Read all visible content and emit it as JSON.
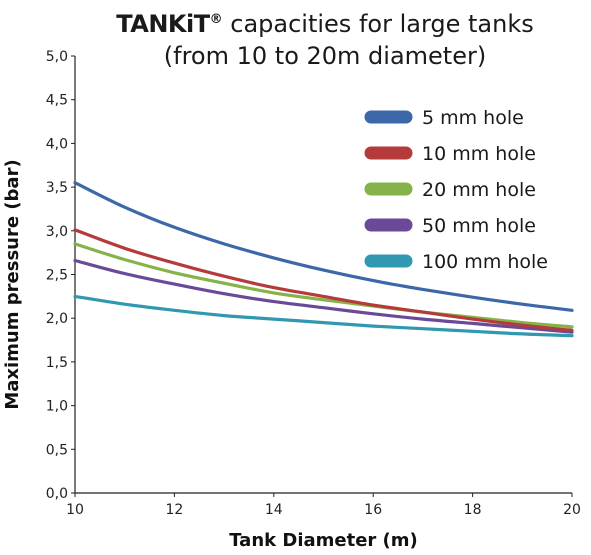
{
  "title": {
    "brand": "TANKiT",
    "reg": "®",
    "line1_rest": " capacities for large tanks",
    "line2": "(from 10 to 20m diameter)"
  },
  "chart_data": {
    "type": "line",
    "xlabel": "Tank Diameter (m)",
    "ylabel": "Maximum pressure (bar)",
    "xlim": [
      10,
      20
    ],
    "ylim": [
      0,
      5
    ],
    "x_ticks": [
      "10",
      "12",
      "14",
      "16",
      "18",
      "20"
    ],
    "y_ticks": [
      "0,0",
      "0,5",
      "1,0",
      "1,5",
      "2,0",
      "2,5",
      "3,0",
      "3,5",
      "4,0",
      "4,5",
      "5,0"
    ],
    "grid": false,
    "legend_position": "top-right",
    "x": [
      10,
      11,
      12,
      13,
      14,
      15,
      16,
      17,
      18,
      19,
      20
    ],
    "series": [
      {
        "name": "5 mm hole",
        "color": "#3c67a8",
        "values": [
          3.55,
          3.27,
          3.04,
          2.85,
          2.69,
          2.55,
          2.43,
          2.33,
          2.24,
          2.16,
          2.09
        ]
      },
      {
        "name": "10 mm hole",
        "color": "#b53a3a",
        "values": [
          3.01,
          2.8,
          2.63,
          2.48,
          2.35,
          2.25,
          2.15,
          2.07,
          1.99,
          1.92,
          1.86
        ]
      },
      {
        "name": "20 mm hole",
        "color": "#86b24a",
        "values": [
          2.85,
          2.67,
          2.52,
          2.4,
          2.29,
          2.21,
          2.14,
          2.07,
          2.01,
          1.95,
          1.9
        ]
      },
      {
        "name": "50 mm hole",
        "color": "#6a4a98",
        "values": [
          2.66,
          2.51,
          2.39,
          2.28,
          2.19,
          2.12,
          2.05,
          1.99,
          1.94,
          1.89,
          1.84
        ]
      },
      {
        "name": "100 mm hole",
        "color": "#3098b0",
        "values": [
          2.25,
          2.16,
          2.09,
          2.03,
          1.99,
          1.95,
          1.91,
          1.88,
          1.85,
          1.82,
          1.8
        ]
      }
    ]
  }
}
